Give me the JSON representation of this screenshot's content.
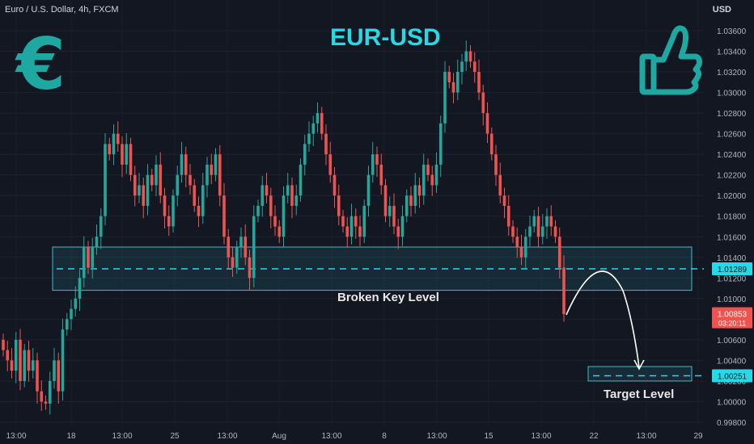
{
  "header": {
    "symbol": "Euro / U.S. Dollar, 4h, FXCM",
    "currency": "USD"
  },
  "title": "EUR-USD",
  "icons": {
    "left": "euro-icon",
    "right": "thumbs-up-icon"
  },
  "labels": {
    "key_level": "Broken Key Level",
    "target": "Target Level"
  },
  "colors": {
    "up": "#26a69a",
    "down": "#ef5350",
    "accent": "#26d9e6",
    "zone": "#3dbfcc",
    "bg": "#131722"
  },
  "chart_data": {
    "type": "candlestick",
    "symbol": "Euro / U.S. Dollar",
    "timeframe": "4h",
    "source": "FXCM",
    "ylim": [
      0.998,
      1.037
    ],
    "y_ticks": [
      "1.03600",
      "1.03400",
      "1.03200",
      "1.03000",
      "1.02800",
      "1.02600",
      "1.02400",
      "1.02200",
      "1.02000",
      "1.01800",
      "1.01600",
      "1.01400",
      "1.01200",
      "1.01000",
      "1.00800",
      "1.00600",
      "1.00400",
      "1.00200",
      "1.00000",
      "0.99800"
    ],
    "x_ticks": [
      "13:00",
      "18",
      "13:00",
      "25",
      "13:00",
      "Aug",
      "13:00",
      "8",
      "13:00",
      "15",
      "13:00",
      "22",
      "13:00",
      "29"
    ],
    "close": [
      1.005,
      1.004,
      1.003,
      1.006,
      1.002,
      1.005,
      1.003,
      1.004,
      1.001,
      1.0,
      0.9998,
      1.002,
      1.004,
      1.001,
      1.007,
      1.008,
      1.009,
      1.01,
      1.012,
      1.015,
      1.013,
      1.015,
      1.016,
      1.018,
      1.025,
      1.024,
      1.026,
      1.025,
      1.023,
      1.025,
      1.022,
      1.02,
      1.021,
      1.019,
      1.022,
      1.021,
      1.023,
      1.02,
      1.018,
      1.017,
      1.02,
      1.022,
      1.024,
      1.022,
      1.021,
      1.019,
      1.018,
      1.021,
      1.023,
      1.022,
      1.024,
      1.02,
      1.016,
      1.014,
      1.013,
      1.015,
      1.016,
      1.014,
      1.012,
      1.018,
      1.019,
      1.021,
      1.02,
      1.018,
      1.017,
      1.016,
      1.02,
      1.021,
      1.019,
      1.02,
      1.023,
      1.025,
      1.026,
      1.027,
      1.028,
      1.026,
      1.024,
      1.022,
      1.02,
      1.018,
      1.017,
      1.016,
      1.018,
      1.017,
      1.016,
      1.019,
      1.022,
      1.024,
      1.023,
      1.021,
      1.018,
      1.019,
      1.017,
      1.016,
      1.018,
      1.02,
      1.019,
      1.021,
      1.02,
      1.023,
      1.022,
      1.021,
      1.023,
      1.027,
      1.032,
      1.031,
      1.03,
      1.032,
      1.033,
      1.034,
      1.033,
      1.032,
      1.03,
      1.028,
      1.026,
      1.024,
      1.022,
      1.02,
      1.019,
      1.017,
      1.016,
      1.015,
      1.014,
      1.016,
      1.017,
      1.018,
      1.016,
      1.017,
      1.018,
      1.017,
      1.016,
      1.013,
      1.0085
    ],
    "key_level": 1.01289,
    "target_level": 1.00251,
    "last_price": 1.00853,
    "countdown": "03:20:11",
    "zones": [
      {
        "name": "Broken Key Level",
        "low": 1.0108,
        "high": 1.015
      },
      {
        "name": "Target Level",
        "low": 1.002,
        "high": 1.0034
      }
    ],
    "annotations": [
      "Broken Key Level",
      "Target Level"
    ]
  }
}
